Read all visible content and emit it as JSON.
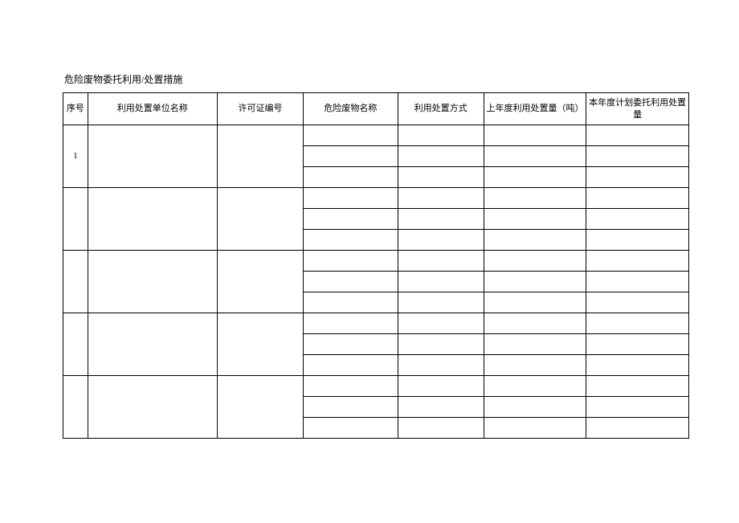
{
  "title": "危险废物委托利用/处置措施",
  "columns": {
    "seq": "序号",
    "unit_name": "利用处置单位名称",
    "license_no": "许可证编号",
    "waste_name": "危险废物名称",
    "method": "利用处置方式",
    "last_year": "上年度利用处置量（吨）",
    "this_year": "本年度计划委托利用处置量"
  },
  "groups": [
    {
      "seq": "1",
      "unit_name": "",
      "license_no": "",
      "rows": [
        {
          "waste_name": "",
          "method": "",
          "last_year": "",
          "this_year": ""
        },
        {
          "waste_name": "",
          "method": "",
          "last_year": "",
          "this_year": ""
        },
        {
          "waste_name": "",
          "method": "",
          "last_year": "",
          "this_year": ""
        }
      ]
    },
    {
      "seq": "",
      "unit_name": "",
      "license_no": "",
      "rows": [
        {
          "waste_name": "",
          "method": "",
          "last_year": "",
          "this_year": ""
        },
        {
          "waste_name": "",
          "method": "",
          "last_year": "",
          "this_year": ""
        },
        {
          "waste_name": "",
          "method": "",
          "last_year": "",
          "this_year": ""
        }
      ]
    },
    {
      "seq": "",
      "unit_name": "",
      "license_no": "",
      "rows": [
        {
          "waste_name": "",
          "method": "",
          "last_year": "",
          "this_year": ""
        },
        {
          "waste_name": "",
          "method": "",
          "last_year": "",
          "this_year": ""
        },
        {
          "waste_name": "",
          "method": "",
          "last_year": "",
          "this_year": ""
        }
      ]
    },
    {
      "seq": "",
      "unit_name": "",
      "license_no": "",
      "rows": [
        {
          "waste_name": "",
          "method": "",
          "last_year": "",
          "this_year": ""
        },
        {
          "waste_name": "",
          "method": "",
          "last_year": "",
          "this_year": ""
        },
        {
          "waste_name": "",
          "method": "",
          "last_year": "",
          "this_year": ""
        }
      ]
    },
    {
      "seq": "",
      "unit_name": "",
      "license_no": "",
      "rows": [
        {
          "waste_name": "",
          "method": "",
          "last_year": "",
          "this_year": ""
        },
        {
          "waste_name": "",
          "method": "",
          "last_year": "",
          "this_year": ""
        },
        {
          "waste_name": "",
          "method": "",
          "last_year": "",
          "this_year": ""
        }
      ]
    }
  ]
}
